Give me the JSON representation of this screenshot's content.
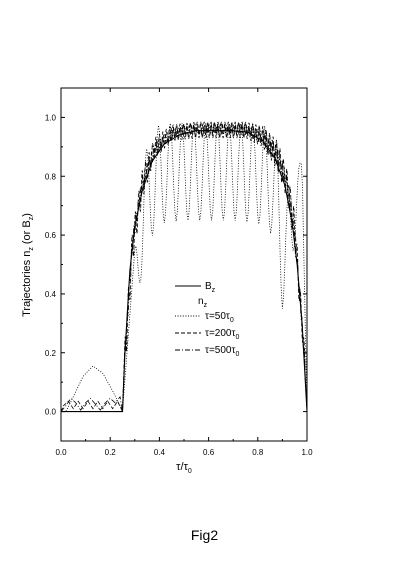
{
  "caption": "Fig2",
  "chart_data": {
    "type": "line",
    "xlim": [
      0.0,
      1.0
    ],
    "ylim": [
      -0.1,
      1.1
    ],
    "x_ticks": [
      "0.0",
      "0.2",
      "0.4",
      "0.6",
      "0.8",
      "1.0"
    ],
    "y_ticks": [
      "0.0",
      "0.2",
      "0.4",
      "0.6",
      "0.8",
      "1.0"
    ],
    "xlabel": {
      "base": "τ/τ",
      "sub": "0"
    },
    "ylabel": {
      "main": "Trajectories  n",
      "sub1": "z",
      "mid": " (or B",
      "sub2": "z",
      "end": ")"
    },
    "legend_position": "center",
    "legend_group_title": {
      "main": "n",
      "sub": "z"
    },
    "series": [
      {
        "key": "Bz",
        "label": {
          "main": "B",
          "sub": "z",
          "rest": ""
        },
        "style": "solid",
        "color": "#000000",
        "points": [
          [
            0.0,
            0.0
          ],
          [
            0.25,
            0.0
          ],
          [
            0.26,
            0.2
          ],
          [
            0.28,
            0.48
          ],
          [
            0.3,
            0.63
          ],
          [
            0.33,
            0.75
          ],
          [
            0.37,
            0.85
          ],
          [
            0.42,
            0.91
          ],
          [
            0.48,
            0.94
          ],
          [
            0.55,
            0.955
          ],
          [
            0.62,
            0.955
          ],
          [
            0.7,
            0.955
          ],
          [
            0.76,
            0.95
          ],
          [
            0.82,
            0.92
          ],
          [
            0.87,
            0.86
          ],
          [
            0.91,
            0.77
          ],
          [
            0.94,
            0.64
          ],
          [
            0.96,
            0.5
          ],
          [
            0.98,
            0.3
          ],
          [
            1.0,
            0.0
          ]
        ]
      },
      {
        "key": "tau50",
        "label": {
          "main": "τ=50τ",
          "sub": "0",
          "rest": ""
        },
        "style": "dotted",
        "color": "#000000",
        "osc": {
          "envelope_low": [
            [
              0.0,
              0.0
            ],
            [
              0.25,
              0.0
            ],
            [
              0.27,
              0.05
            ],
            [
              0.3,
              0.28
            ],
            [
              0.34,
              0.55
            ],
            [
              0.4,
              0.64
            ],
            [
              0.5,
              0.65
            ],
            [
              0.6,
              0.65
            ],
            [
              0.7,
              0.65
            ],
            [
              0.8,
              0.64
            ],
            [
              0.86,
              0.6
            ],
            [
              0.88,
              0.48
            ],
            [
              0.9,
              0.35
            ],
            [
              0.93,
              0.42
            ],
            [
              0.96,
              0.65
            ],
            [
              0.98,
              0.8
            ],
            [
              1.0,
              0.0
            ]
          ],
          "envelope_high": [
            [
              0.0,
              0.0
            ],
            [
              0.25,
              0.0
            ],
            [
              0.27,
              0.2
            ],
            [
              0.3,
              0.55
            ],
            [
              0.34,
              0.88
            ],
            [
              0.4,
              0.98
            ],
            [
              0.5,
              0.98
            ],
            [
              0.6,
              0.98
            ],
            [
              0.7,
              0.98
            ],
            [
              0.8,
              0.98
            ],
            [
              0.86,
              0.96
            ],
            [
              0.88,
              0.9
            ],
            [
              0.9,
              0.7
            ],
            [
              0.93,
              0.75
            ],
            [
              0.96,
              0.84
            ],
            [
              0.98,
              0.85
            ],
            [
              1.0,
              0.0
            ]
          ],
          "period": 0.048,
          "x0": 0.3,
          "x1": 0.985
        },
        "lead": [
          [
            0.0,
            0.0
          ],
          [
            0.02,
            0.0
          ],
          [
            0.05,
            0.05
          ],
          [
            0.09,
            0.12
          ],
          [
            0.13,
            0.155
          ],
          [
            0.17,
            0.13
          ],
          [
            0.21,
            0.07
          ],
          [
            0.24,
            0.02
          ],
          [
            0.25,
            0.0
          ]
        ]
      },
      {
        "key": "tau200",
        "label": {
          "main": "τ=200τ",
          "sub": "0",
          "rest": ""
        },
        "style": "dashed",
        "color": "#000000",
        "osc": {
          "envelope_low": [
            [
              0.0,
              0.0
            ],
            [
              0.25,
              0.0
            ],
            [
              0.26,
              0.12
            ],
            [
              0.29,
              0.5
            ],
            [
              0.33,
              0.72
            ],
            [
              0.38,
              0.86
            ],
            [
              0.45,
              0.92
            ],
            [
              0.55,
              0.93
            ],
            [
              0.65,
              0.93
            ],
            [
              0.75,
              0.93
            ],
            [
              0.82,
              0.9
            ],
            [
              0.88,
              0.82
            ],
            [
              0.92,
              0.72
            ],
            [
              0.95,
              0.56
            ],
            [
              0.97,
              0.35
            ],
            [
              0.99,
              0.15
            ],
            [
              1.0,
              0.0
            ]
          ],
          "envelope_high": [
            [
              0.0,
              0.0
            ],
            [
              0.25,
              0.0
            ],
            [
              0.26,
              0.25
            ],
            [
              0.29,
              0.62
            ],
            [
              0.33,
              0.82
            ],
            [
              0.38,
              0.93
            ],
            [
              0.45,
              0.975
            ],
            [
              0.55,
              0.985
            ],
            [
              0.65,
              0.985
            ],
            [
              0.75,
              0.985
            ],
            [
              0.82,
              0.97
            ],
            [
              0.88,
              0.92
            ],
            [
              0.92,
              0.82
            ],
            [
              0.95,
              0.68
            ],
            [
              0.97,
              0.45
            ],
            [
              0.99,
              0.22
            ],
            [
              1.0,
              0.0
            ]
          ],
          "period": 0.014,
          "x0": 0.26,
          "x1": 1.0
        },
        "lead": [
          [
            0.0,
            0.0
          ],
          [
            0.01,
            0.02
          ],
          [
            0.03,
            0.035
          ],
          [
            0.05,
            0.01
          ],
          [
            0.07,
            0.035
          ],
          [
            0.09,
            0.01
          ],
          [
            0.11,
            0.035
          ],
          [
            0.13,
            0.01
          ],
          [
            0.15,
            0.035
          ],
          [
            0.17,
            0.01
          ],
          [
            0.19,
            0.035
          ],
          [
            0.21,
            0.01
          ],
          [
            0.23,
            0.035
          ],
          [
            0.25,
            0.0
          ]
        ]
      },
      {
        "key": "tau500",
        "label": {
          "main": "τ=500τ",
          "sub": "0",
          "rest": ""
        },
        "style": "dashdot",
        "color": "#000000",
        "osc": {
          "envelope_low": [
            [
              0.0,
              0.0
            ],
            [
              0.25,
              0.0
            ],
            [
              0.26,
              0.15
            ],
            [
              0.29,
              0.55
            ],
            [
              0.33,
              0.75
            ],
            [
              0.38,
              0.87
            ],
            [
              0.45,
              0.93
            ],
            [
              0.55,
              0.945
            ],
            [
              0.65,
              0.945
            ],
            [
              0.75,
              0.94
            ],
            [
              0.82,
              0.91
            ],
            [
              0.88,
              0.84
            ],
            [
              0.92,
              0.74
            ],
            [
              0.95,
              0.58
            ],
            [
              0.97,
              0.38
            ],
            [
              0.99,
              0.16
            ],
            [
              1.0,
              0.0
            ]
          ],
          "envelope_high": [
            [
              0.0,
              0.0
            ],
            [
              0.25,
              0.0
            ],
            [
              0.26,
              0.22
            ],
            [
              0.29,
              0.6
            ],
            [
              0.33,
              0.8
            ],
            [
              0.38,
              0.91
            ],
            [
              0.45,
              0.965
            ],
            [
              0.55,
              0.975
            ],
            [
              0.65,
              0.975
            ],
            [
              0.75,
              0.975
            ],
            [
              0.82,
              0.955
            ],
            [
              0.88,
              0.9
            ],
            [
              0.92,
              0.8
            ],
            [
              0.95,
              0.64
            ],
            [
              0.97,
              0.43
            ],
            [
              0.99,
              0.2
            ],
            [
              1.0,
              0.0
            ]
          ],
          "period": 0.009,
          "x0": 0.26,
          "x1": 1.0
        },
        "lead": [
          [
            0.0,
            0.0
          ],
          [
            0.02,
            0.02
          ],
          [
            0.04,
            0.045
          ],
          [
            0.06,
            0.03
          ],
          [
            0.08,
            0.005
          ],
          [
            0.1,
            0.03
          ],
          [
            0.12,
            0.045
          ],
          [
            0.14,
            0.025
          ],
          [
            0.16,
            0.005
          ],
          [
            0.18,
            0.03
          ],
          [
            0.2,
            0.045
          ],
          [
            0.22,
            0.03
          ],
          [
            0.24,
            0.05
          ],
          [
            0.25,
            0.0
          ]
        ]
      }
    ]
  }
}
